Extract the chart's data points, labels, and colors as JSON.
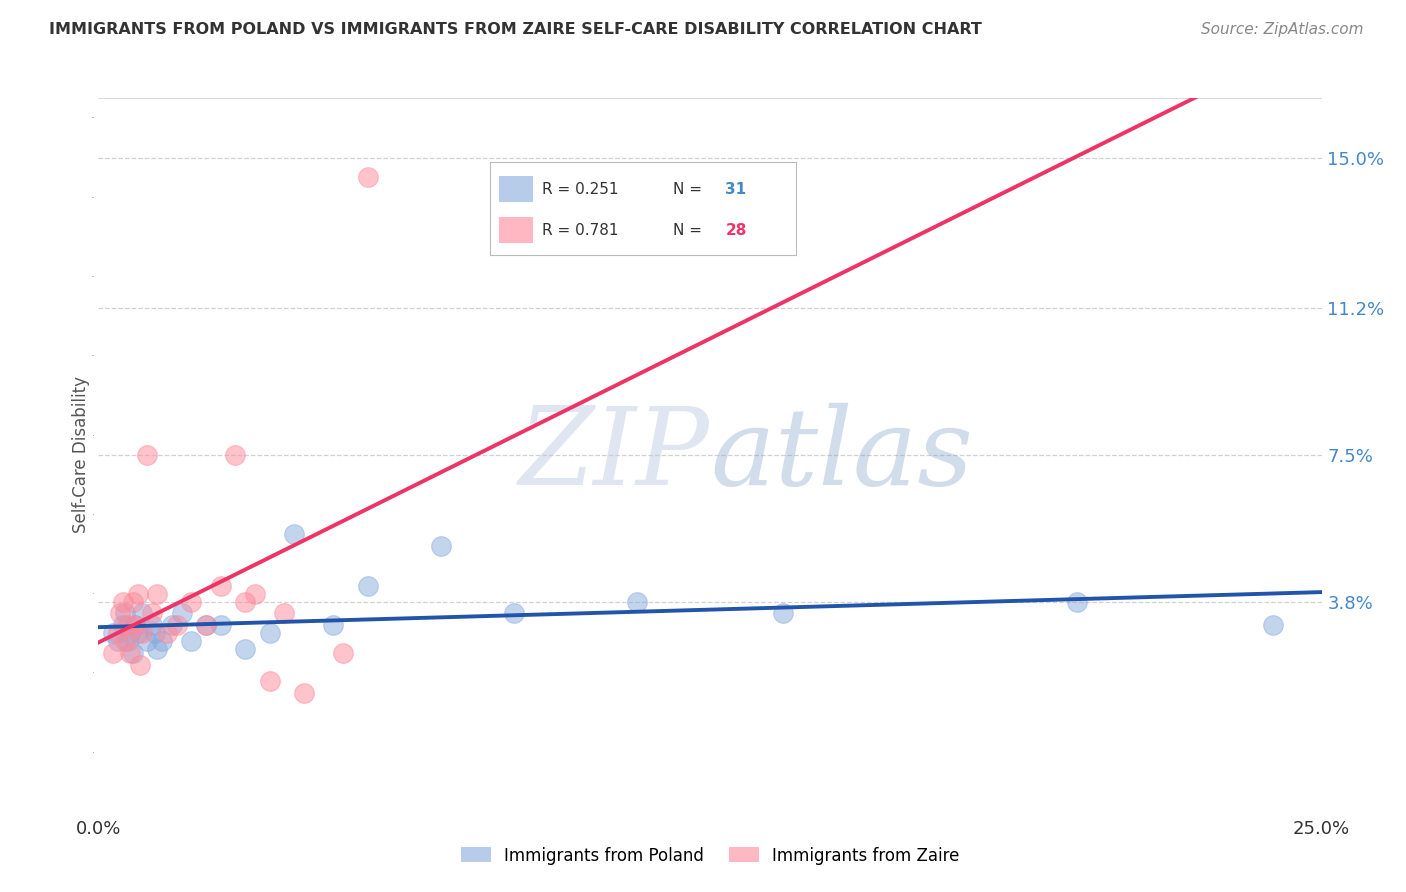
{
  "title": "IMMIGRANTS FROM POLAND VS IMMIGRANTS FROM ZAIRE SELF-CARE DISABILITY CORRELATION CHART",
  "source": "Source: ZipAtlas.com",
  "ylabel": "Self-Care Disability",
  "ytick_labels": [
    "3.8%",
    "7.5%",
    "11.2%",
    "15.0%"
  ],
  "ytick_values": [
    3.8,
    7.5,
    11.2,
    15.0
  ],
  "xlim": [
    0.0,
    25.0
  ],
  "ylim": [
    -1.5,
    16.5
  ],
  "legend_R_poland": "R = 0.251",
  "legend_N_poland": "31",
  "legend_R_zaire": "R = 0.781",
  "legend_N_zaire": "28",
  "legend_label_poland": "Immigrants from Poland",
  "legend_label_zaire": "Immigrants from Zaire",
  "color_poland": "#88AADD",
  "color_zaire": "#FF8899",
  "trendline_poland_color": "#2255AA",
  "trendline_zaire_color": "#EE3366",
  "poland_x": [
    0.3,
    0.4,
    0.5,
    0.55,
    0.6,
    0.65,
    0.7,
    0.75,
    0.8,
    0.9,
    1.0,
    1.1,
    1.15,
    1.2,
    1.3,
    1.5,
    1.7,
    1.9,
    2.2,
    2.5,
    3.0,
    3.5,
    4.0,
    4.8,
    5.5,
    7.0,
    8.5,
    11.0,
    14.0,
    20.0,
    24.0
  ],
  "poland_y": [
    3.0,
    2.8,
    3.2,
    3.5,
    2.8,
    3.0,
    2.5,
    3.2,
    3.0,
    3.5,
    2.8,
    3.2,
    3.0,
    2.6,
    2.8,
    3.2,
    3.5,
    2.8,
    3.2,
    3.2,
    2.6,
    3.0,
    5.5,
    3.2,
    4.2,
    5.2,
    3.5,
    3.8,
    3.5,
    3.8,
    3.2
  ],
  "zaire_x": [
    0.3,
    0.4,
    0.45,
    0.5,
    0.55,
    0.6,
    0.65,
    0.7,
    0.75,
    0.8,
    0.85,
    0.9,
    1.0,
    1.1,
    1.2,
    1.4,
    1.6,
    1.9,
    2.2,
    2.5,
    2.8,
    3.0,
    3.2,
    3.5,
    3.8,
    4.2,
    5.0,
    5.5
  ],
  "zaire_y": [
    2.5,
    3.0,
    3.5,
    3.8,
    2.8,
    3.2,
    2.5,
    3.8,
    3.2,
    4.0,
    2.2,
    3.0,
    7.5,
    3.5,
    4.0,
    3.0,
    3.2,
    3.8,
    3.2,
    4.2,
    7.5,
    3.8,
    4.0,
    1.8,
    3.5,
    1.5,
    2.5,
    14.5
  ],
  "watermark_zip": "ZIP",
  "watermark_atlas": "atlas",
  "background_color": "#FFFFFF",
  "grid_color": "#CCCCCC",
  "title_fontsize": 11.5,
  "source_fontsize": 11.0,
  "tick_fontsize": 13,
  "ylabel_fontsize": 12,
  "legend_fontsize": 11
}
